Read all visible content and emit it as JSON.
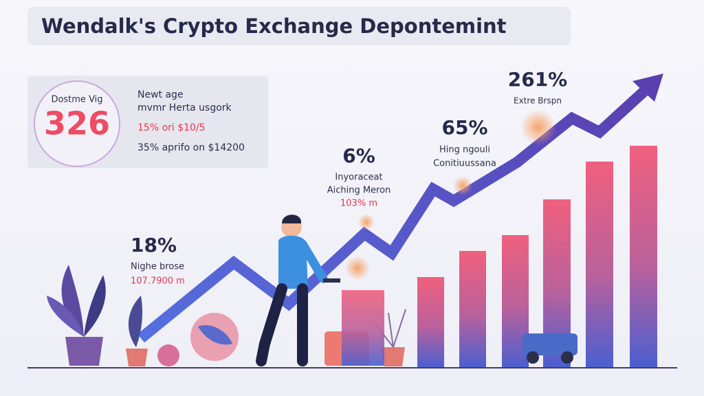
{
  "header": {
    "title": "Wendalk's Crypto Exchange Depontemint"
  },
  "card": {
    "badge_label": "Dostme Vig",
    "badge_value": "326",
    "lines": [
      "Newt age",
      "mvmr Herta usgork",
      "15% ori $10/5",
      "35% aprifo on $14200"
    ]
  },
  "annotations": [
    {
      "value": "18%",
      "label": "Nighe brose",
      "detail": "107.7900 m"
    },
    {
      "value": "6%",
      "label": "Inyoraceat",
      "detail": "Aiching Meron",
      "extra": "103% m"
    },
    {
      "value": "65%",
      "label": "Hing ngouli",
      "detail": "Conitiuussana"
    },
    {
      "value": "261%",
      "label": "Extre Brspn"
    }
  ]
}
